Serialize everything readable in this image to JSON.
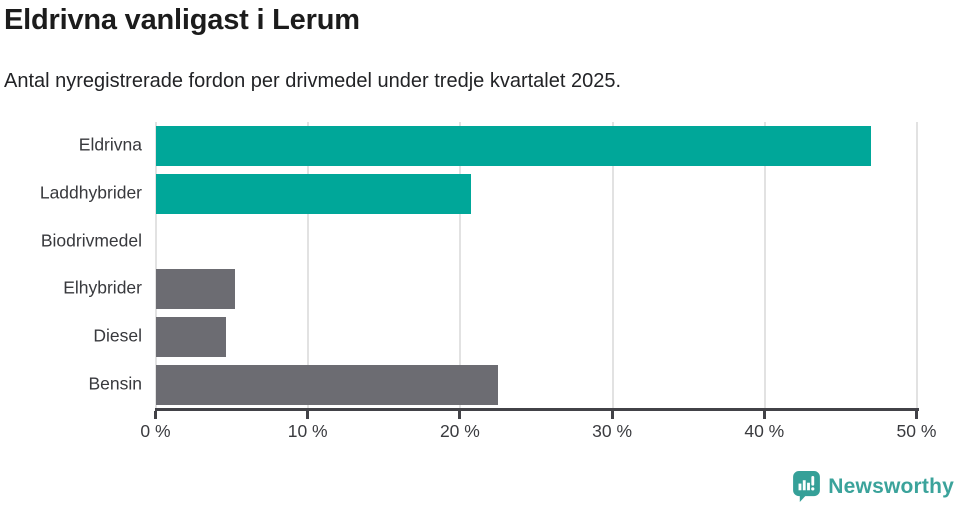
{
  "header": {
    "title": "Eldrivna vanligast i Lerum",
    "subtitle": "Antal nyregistrerade fordon per drivmedel under tredje kvartalet 2025."
  },
  "chart_data": {
    "type": "bar",
    "orientation": "horizontal",
    "title": "Eldrivna vanligast i Lerum",
    "subtitle": "Antal nyregistrerade fordon per drivmedel under tredje kvartalet 2025.",
    "categories": [
      "Eldrivna",
      "Laddhybrider",
      "Biodrivmedel",
      "Elhybrider",
      "Diesel",
      "Bensin"
    ],
    "values": [
      47,
      20.7,
      0,
      5.2,
      4.6,
      22.5
    ],
    "unit": "%",
    "bar_colors": [
      "#00a799",
      "#00a799",
      "#6c6c72",
      "#6c6c72",
      "#6c6c72",
      "#6c6c72"
    ],
    "xlim": [
      0,
      50
    ],
    "x_ticks": [
      0,
      10,
      20,
      30,
      40,
      50
    ],
    "x_tick_labels": [
      "0 %",
      "10 %",
      "20 %",
      "30 %",
      "40 %",
      "50 %"
    ],
    "grid": "vertical-gridlines-on",
    "legend": "none",
    "xlabel": "",
    "ylabel": ""
  },
  "colors": {
    "accent_teal": "#00a799",
    "neutral_gray": "#6c6c72",
    "gridline": "#e2e2e2",
    "axis": "#424247",
    "text": "#38393d",
    "brand_teal": "#3ba39b"
  },
  "footer": {
    "brand": "Newsworthy"
  }
}
